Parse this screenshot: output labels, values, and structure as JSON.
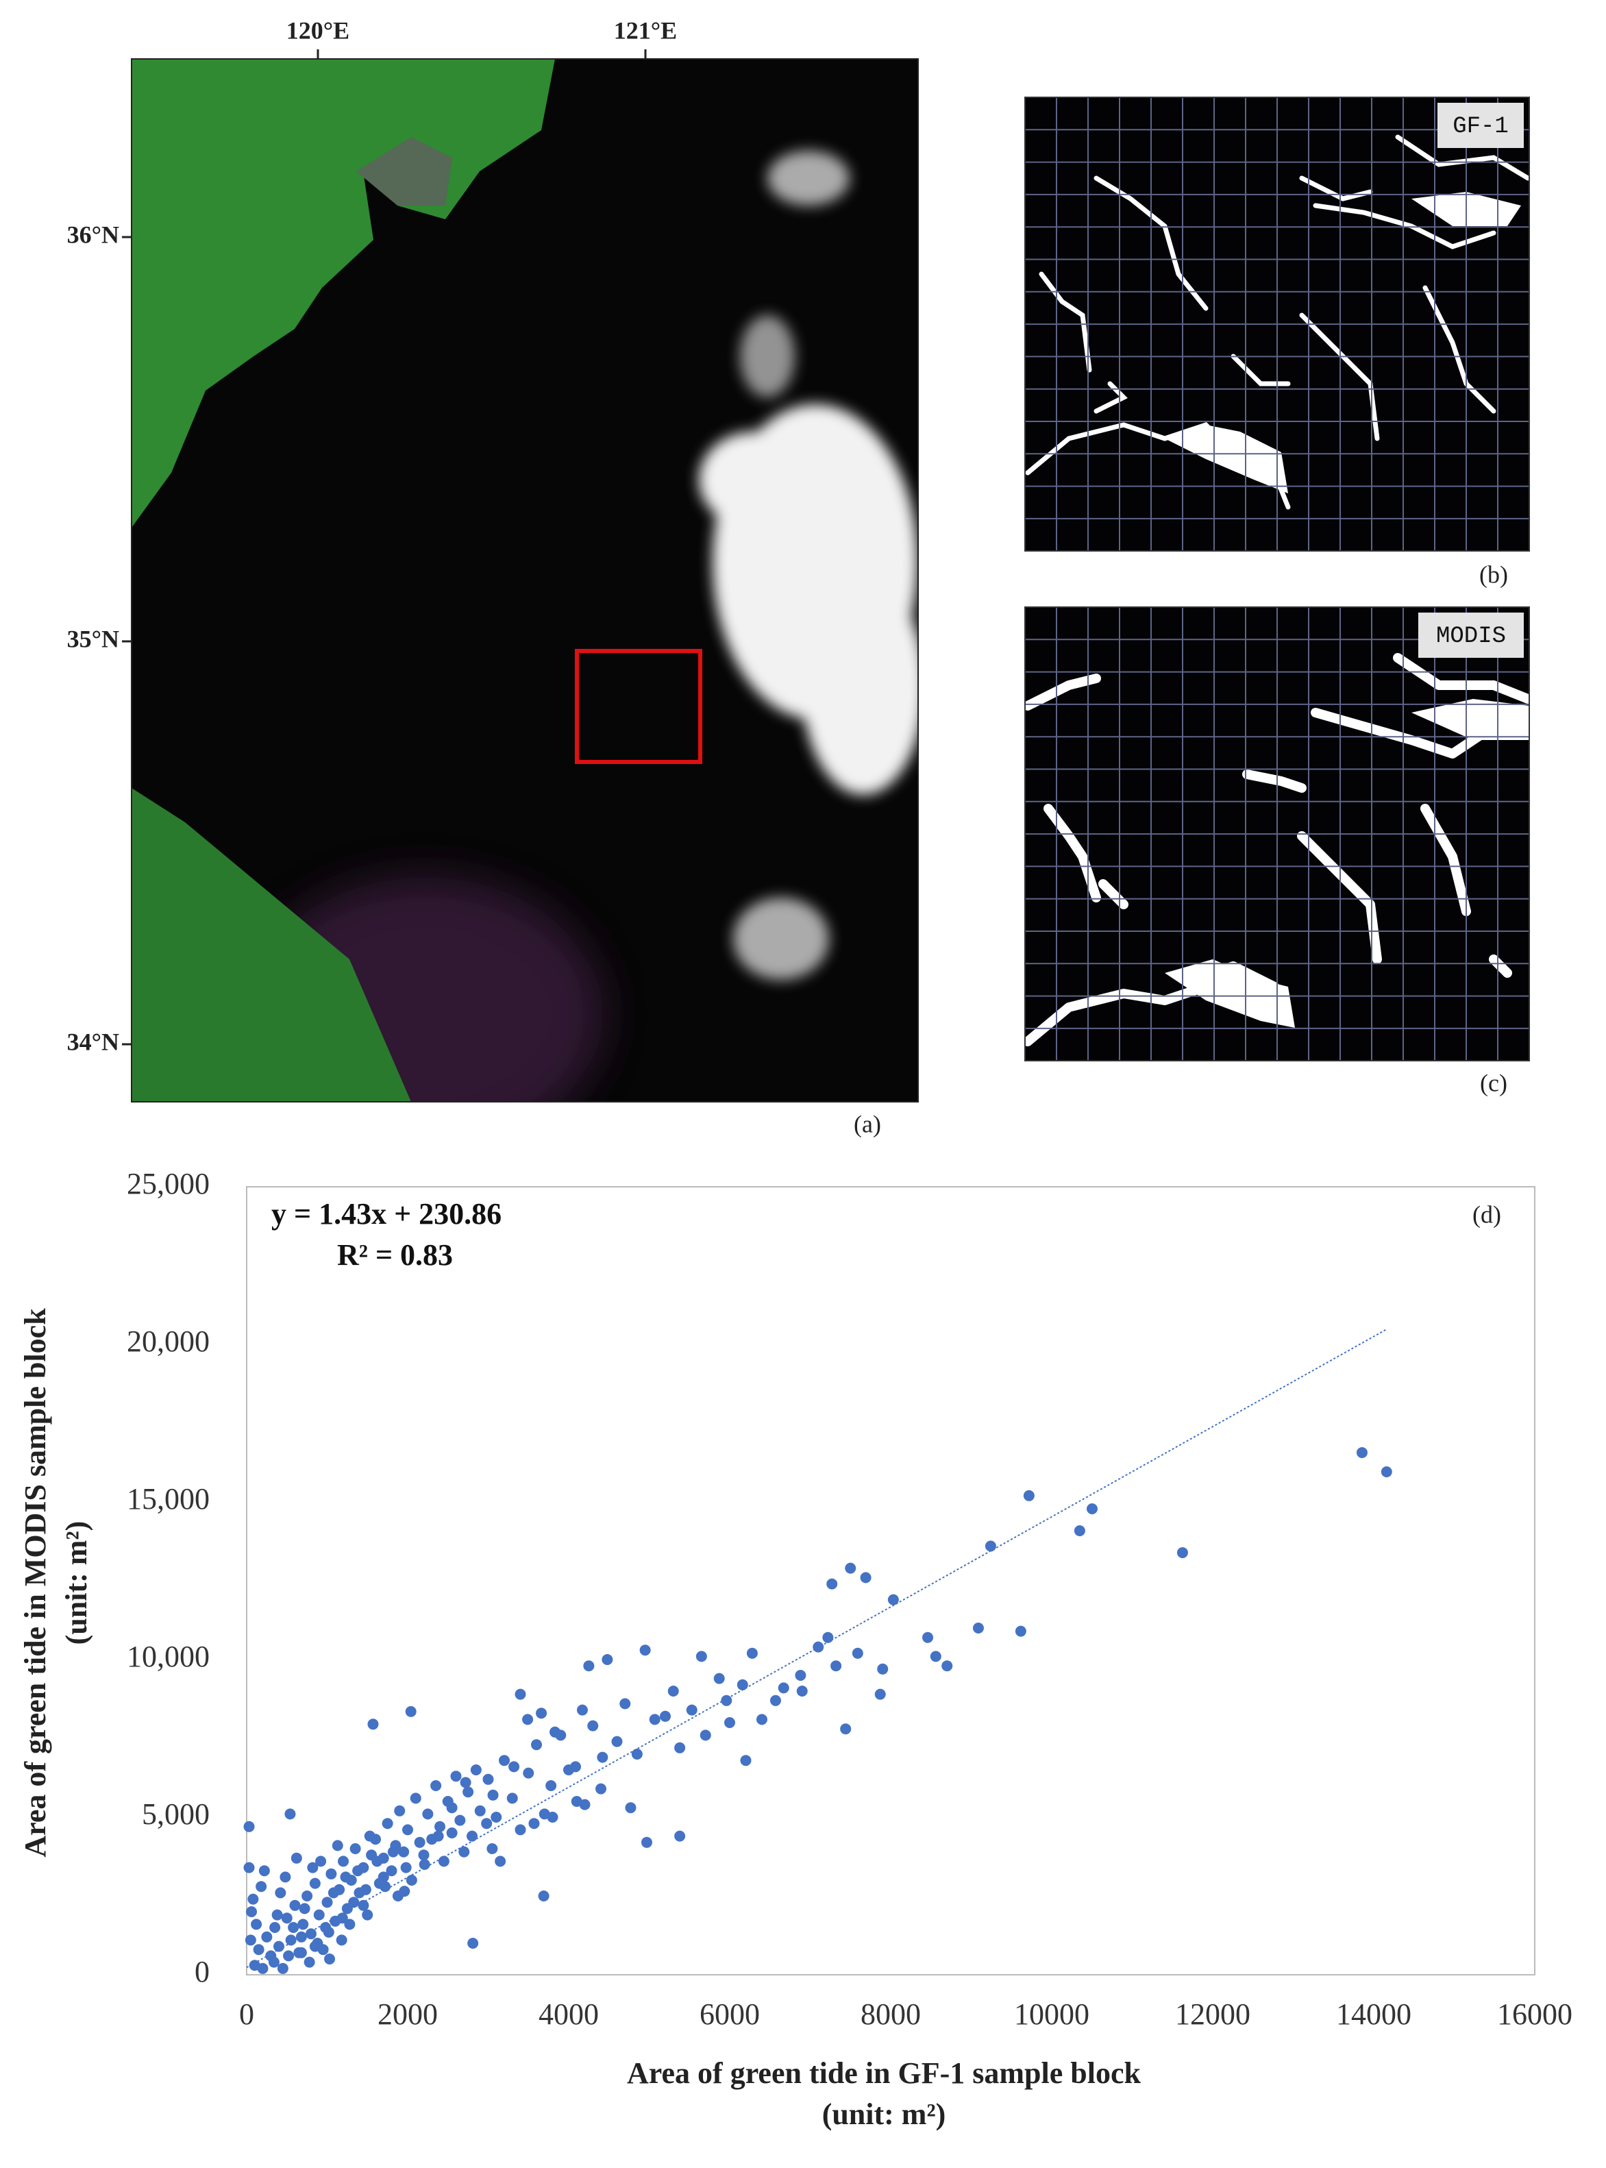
{
  "map": {
    "x_ticks": [
      "120°E",
      "121°E"
    ],
    "y_ticks": [
      "36°N",
      "35°N",
      "34°N"
    ],
    "label": "(a)"
  },
  "panels": [
    {
      "tag": "GF-1",
      "label": "(b)"
    },
    {
      "tag": "MODIS",
      "label": "(c)"
    }
  ],
  "chart_data": {
    "type": "scatter",
    "title_label": "(d)",
    "annotations": [
      "y = 1.43x + 230.86",
      "R² = 0.83"
    ],
    "x_label": [
      "Area of green tide in GF-1 sample block",
      "(unit: m²)"
    ],
    "y_label": [
      "Area of green tide in MODIS sample block",
      "(unit: m²)"
    ],
    "color": "#4472c4",
    "xlim": [
      0,
      16000
    ],
    "xticks": [
      0,
      2000,
      4000,
      6000,
      8000,
      10000,
      12000,
      14000,
      16000
    ],
    "ylim": [
      0,
      25000
    ],
    "yticks": [
      0,
      {
        "value": 5000,
        "label": "5,000"
      },
      {
        "value": 10000,
        "label": "10,000"
      },
      {
        "value": 15000,
        "label": "15,000"
      },
      {
        "value": 20000,
        "label": "20,000"
      },
      {
        "value": 25000,
        "label": "25,000"
      }
    ],
    "trendline": {
      "slope": 1.43,
      "intercept": 230.86,
      "x_range": [
        0,
        14160
      ]
    },
    "x": [
      13855,
      14160,
      11625,
      10502,
      10348,
      9718,
      9242,
      9089,
      9616,
      8033,
      7270,
      7500,
      7690,
      8460,
      8560,
      8700,
      7900,
      7870,
      7440,
      7220,
      7320,
      7590,
      6880,
      6670,
      6570,
      6400,
      6280,
      6160,
      5960,
      5650,
      5870,
      5530,
      5380,
      5380,
      4970,
      5070,
      4950,
      4480,
      4250,
      4170,
      4420,
      4850,
      4770,
      4085,
      3780,
      3830,
      3660,
      3400,
      3490,
      3320,
      3060,
      3570,
      3690,
      2980,
      2720,
      2550,
      2810,
      2040,
      1570,
      540,
      30,
      2380,
      2210,
      1960,
      1700,
      1450,
      1190,
      1020,
      850,
      680,
      340,
      100,
      150,
      200,
      250,
      300,
      350,
      400,
      450,
      500,
      550,
      600,
      650,
      700,
      750,
      800,
      850,
      900,
      950,
      1000,
      1050,
      1100,
      1150,
      1200,
      1250,
      1300,
      1350,
      1400,
      1450,
      1500,
      1550,
      1600,
      1650,
      1700,
      1750,
      1800,
      1850,
      1900,
      1950,
      2000,
      2100,
      2150,
      2250,
      2350,
      2400,
      2500,
      2600,
      2650,
      2750,
      2850,
      2900,
      3000,
      3100,
      3200,
      3300,
      3500,
      3600,
      3700,
      3900,
      4000,
      4100,
      4300,
      4600,
      4700,
      5200,
      5300,
      5700,
      6000,
      6200,
      6900,
      7100,
      80,
      120,
      50,
      30,
      60,
      180,
      220,
      380,
      420,
      480,
      520,
      580,
      620,
      680,
      720,
      780,
      820,
      880,
      920,
      980,
      1030,
      1080,
      1130,
      1180,
      1230,
      1280,
      1330,
      1380,
      1480,
      1530,
      1620,
      1720,
      1820,
      1880,
      1980,
      2050,
      2200,
      2300,
      2450,
      2550,
      2700,
      2800,
      3050,
      3150,
      3400,
      3800,
      4200,
      4400
    ],
    "y": [
      16566,
      15957,
      13392,
      14783,
      14087,
      15200,
      13600,
      11000,
      10900,
      11900,
      12400,
      12900,
      12600,
      10700,
      10100,
      9800,
      9700,
      8900,
      7800,
      10700,
      9800,
      10200,
      9500,
      9100,
      8700,
      8100,
      10200,
      9200,
      8700,
      10100,
      9400,
      8400,
      7200,
      4400,
      4200,
      8100,
      10300,
      10000,
      9800,
      8400,
      6900,
      7000,
      5300,
      6600,
      6000,
      7700,
      8300,
      8900,
      8100,
      6600,
      5700,
      4800,
      2500,
      4800,
      6100,
      5300,
      1000,
      8350,
      7950,
      5100,
      4700,
      4400,
      3500,
      2650,
      3100,
      2200,
      1800,
      1350,
      900,
      700,
      400,
      300,
      800,
      200,
      1200,
      600,
      1500,
      900,
      200,
      1800,
      1100,
      2200,
      700,
      1600,
      2500,
      1300,
      2900,
      1900,
      800,
      2300,
      3200,
      1700,
      2700,
      3600,
      2100,
      3000,
      4000,
      2600,
      3400,
      1900,
      3800,
      4300,
      2900,
      3700,
      4800,
      3300,
      4100,
      5200,
      3900,
      4600,
      5600,
      4200,
      5100,
      6000,
      4700,
      5500,
      6300,
      4900,
      5800,
      6500,
      5200,
      6200,
      5000,
      6800,
      5600,
      6400,
      7300,
      5100,
      7600,
      6500,
      5500,
      7900,
      7400,
      8600,
      8200,
      9000,
      7600,
      8000,
      6800,
      9000,
      10400,
      2400,
      1600,
      1100,
      3400,
      2000,
      2800,
      3300,
      1900,
      2600,
      3100,
      600,
      1500,
      3700,
      1200,
      2100,
      400,
      3400,
      1000,
      3600,
      1500,
      500,
      2600,
      4100,
      1100,
      3100,
      1600,
      2300,
      3300,
      2700,
      4400,
      3600,
      2800,
      3900,
      2500,
      3400,
      3000,
      3800,
      4300,
      3600,
      4500,
      3900,
      4400,
      4000,
      3600,
      4600,
      5000,
      5400,
      5900
    ]
  }
}
